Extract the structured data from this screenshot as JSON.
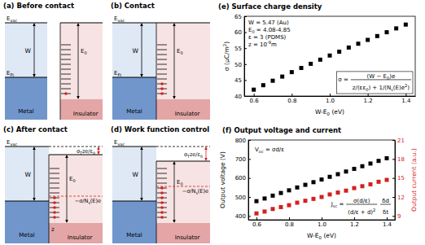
{
  "diagrams": [
    {
      "title": "(a) Before contact",
      "evac": [
        "E",
        {
          "sub": "vac"
        }
      ],
      "w": [
        "W"
      ],
      "ef": [
        "E",
        {
          "sub": "Ft"
        }
      ],
      "e0": [
        "E",
        {
          "sub": "0"
        }
      ],
      "metal": [
        "Metal"
      ],
      "insulator": [
        "Insulator"
      ]
    },
    {
      "title": "(b) Contact",
      "evac": [
        "E",
        {
          "sub": "vac"
        }
      ],
      "w": [
        "W"
      ],
      "ef": [
        "E",
        {
          "sub": "Ft"
        }
      ],
      "e0": [
        "E",
        {
          "sub": "0"
        }
      ],
      "metal": [
        "Metal"
      ],
      "insulator": [
        "Insulator"
      ]
    },
    {
      "title": "(c) After contact",
      "evac": [
        "E",
        {
          "sub": "vac"
        }
      ],
      "w": [
        "W"
      ],
      "e0": [
        "E",
        {
          "sub": "0"
        }
      ],
      "shift": [
        "σ",
        {
          "sub": "T"
        },
        "ze/ε",
        {
          "sub": "0"
        }
      ],
      "charge": [
        "−σ/N",
        {
          "sub": "s"
        },
        "(E)e"
      ],
      "z": [
        "z"
      ],
      "metal": [
        "Metal"
      ],
      "insulator": [
        "Insulator"
      ]
    },
    {
      "title": "(d) Work function control",
      "evac": [
        "E",
        {
          "sub": "vac"
        }
      ],
      "w": [
        "W"
      ],
      "e0": [
        "E",
        {
          "sub": "0"
        }
      ],
      "shift": [
        "σ",
        {
          "sub": "T"
        },
        "ze/ε",
        {
          "sub": "0"
        }
      ],
      "charge": [
        "−σ/N",
        {
          "sub": "s"
        },
        "(E)e"
      ],
      "metal": [
        "Metal"
      ],
      "insulator": [
        "Insulator"
      ]
    }
  ],
  "chart_data": [
    {
      "type": "scatter",
      "title": "(e) Surface charge density",
      "xlabel": [
        "W-E",
        {
          "sub": "0"
        },
        " (eV)"
      ],
      "ylabel": [
        "σ (μC/m",
        {
          "sup": "2"
        },
        ")"
      ],
      "x": [
        0.6,
        0.65,
        0.7,
        0.75,
        0.8,
        0.85,
        0.9,
        0.95,
        1.0,
        1.05,
        1.1,
        1.15,
        1.2,
        1.25,
        1.3,
        1.35,
        1.4
      ],
      "values": [
        42.0,
        43.4,
        44.8,
        46.1,
        47.5,
        48.8,
        50.1,
        51.4,
        52.7,
        53.9,
        55.2,
        56.4,
        57.6,
        58.8,
        60.0,
        61.2,
        62.4
      ],
      "color": "#000000",
      "marker": "square",
      "grid": false,
      "xlim": [
        0.55,
        1.45
      ],
      "xticks": [
        0.6,
        0.8,
        {
          "value": 1,
          "label": "1.0"
        },
        1.2,
        1.4
      ],
      "ylim": [
        40,
        65
      ],
      "yticks": [
        40,
        45,
        50,
        55,
        60,
        65
      ],
      "annotations": [
        [
          "W = 5.47 (Au)"
        ],
        [
          "E",
          {
            "sub": "0"
          },
          " = 4.08-4.85"
        ],
        [
          "ε = 3 (PDMS)"
        ],
        [
          "z = 10",
          {
            "sup": "-9"
          },
          "m"
        ]
      ],
      "formula": {
        "lhs": [
          "σ ="
        ],
        "numerator": [
          "(W − E",
          {
            "sub": "0"
          },
          ")e"
        ],
        "denominator": [
          "z/(εε",
          {
            "sub": "0"
          },
          ") + 1/(N",
          {
            "sub": "s"
          },
          "(E)e",
          {
            "sup": "2"
          },
          ")"
        ]
      }
    },
    {
      "type": "scatter",
      "title": "(f) Output voltage and current",
      "xlabel": [
        "W-E",
        {
          "sub": "0"
        },
        " (eV)"
      ],
      "ylabel": [
        "Output voltage (V)"
      ],
      "y2label": [
        "Output current (a.u.)"
      ],
      "x": [
        0.6,
        0.65,
        0.7,
        0.75,
        0.8,
        0.85,
        0.9,
        0.95,
        1.0,
        1.05,
        1.1,
        1.15,
        1.2,
        1.25,
        1.3,
        1.35,
        1.4
      ],
      "series": [
        {
          "color": "#000000",
          "marker": "square",
          "values": [
            478,
            492,
            507,
            521,
            535,
            550,
            564,
            578,
            592,
            606,
            620,
            634,
            648,
            662,
            676,
            690,
            704
          ]
        },
        {
          "color": "#d42020",
          "marker": "square",
          "axis": "y2",
          "values": [
            9.4,
            9.7,
            10.1,
            10.4,
            10.7,
            11.1,
            11.4,
            11.7,
            12.0,
            12.4,
            12.7,
            13.0,
            13.4,
            13.7,
            14.0,
            14.4,
            14.7
          ]
        }
      ],
      "grid": false,
      "xlim": [
        0.55,
        1.45
      ],
      "xticks": [
        0.6,
        0.8,
        {
          "value": 1,
          "label": "1.0"
        },
        1.2,
        1.4
      ],
      "ylim": [
        380,
        800
      ],
      "yticks": [
        400,
        500,
        600,
        700,
        800
      ],
      "y2lim": [
        8.4,
        21
      ],
      "y2ticks": [
        9,
        12,
        15,
        18,
        21
      ],
      "annotations": [
        [
          "V",
          {
            "sub": "oc"
          },
          " = σd/ε"
        ]
      ],
      "formula": {
        "lhs": [
          "J",
          {
            "sub": "sc"
          },
          " ="
        ],
        "numerator": [
          "σ(d/ε)"
        ],
        "denominator": [
          "(d/ε + d)",
          {
            "sup": "2"
          }
        ],
        "factor_numerator": [
          "δd"
        ],
        "factor_denominator": [
          "δt"
        ]
      }
    }
  ]
}
